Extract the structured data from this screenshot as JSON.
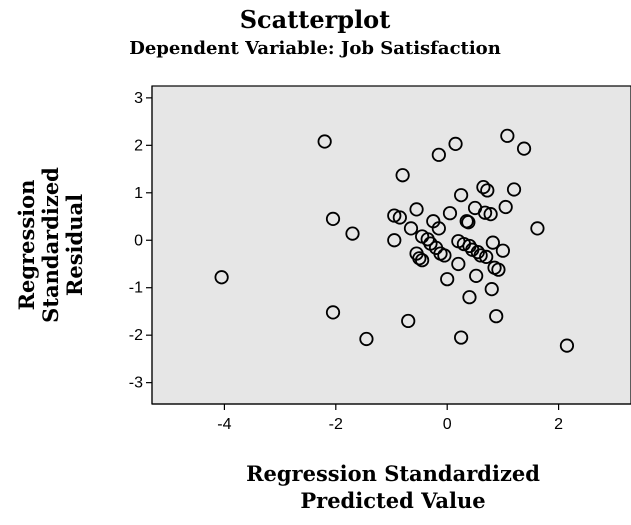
{
  "chart_data": {
    "type": "scatter",
    "title": "Scatterplot",
    "subtitle": "Dependent Variable: Job Satisfaction",
    "xlabel_lines": [
      "Regression Standardized",
      "Predicted Value"
    ],
    "ylabel_lines": [
      "Regression",
      "Standardized",
      "Residual"
    ],
    "xlim": [
      -5.3,
      3.3
    ],
    "ylim": [
      -3.45,
      3.25
    ],
    "xticks": [
      -4,
      -2,
      0,
      2
    ],
    "yticks": [
      3,
      2,
      1,
      0,
      -1,
      -2,
      -3
    ],
    "xtick_labels": [
      "-4",
      "-2",
      "0",
      "2"
    ],
    "ytick_labels": [
      "3",
      "2",
      "1",
      "0",
      "-1",
      "-2",
      "-3"
    ],
    "grid": false,
    "plot_background": "#e6e6e6",
    "marker_color": "#000000",
    "points": [
      {
        "x": -4.05,
        "y": -0.78
      },
      {
        "x": -2.2,
        "y": 2.08
      },
      {
        "x": -2.05,
        "y": 0.45
      },
      {
        "x": -2.05,
        "y": -1.52
      },
      {
        "x": -1.7,
        "y": 0.14
      },
      {
        "x": -1.45,
        "y": -2.08
      },
      {
        "x": -0.95,
        "y": 0.52
      },
      {
        "x": -0.85,
        "y": 0.48
      },
      {
        "x": -0.95,
        "y": 0.0
      },
      {
        "x": -0.8,
        "y": 1.37
      },
      {
        "x": -0.7,
        "y": -1.7
      },
      {
        "x": -0.65,
        "y": 0.25
      },
      {
        "x": -0.55,
        "y": 0.65
      },
      {
        "x": -0.55,
        "y": -0.28
      },
      {
        "x": -0.5,
        "y": -0.38
      },
      {
        "x": -0.45,
        "y": -0.42
      },
      {
        "x": -0.45,
        "y": 0.08
      },
      {
        "x": -0.35,
        "y": 0.02
      },
      {
        "x": -0.3,
        "y": -0.07
      },
      {
        "x": -0.25,
        "y": 0.4
      },
      {
        "x": -0.2,
        "y": -0.16
      },
      {
        "x": -0.15,
        "y": 0.25
      },
      {
        "x": -0.12,
        "y": -0.28
      },
      {
        "x": -0.15,
        "y": 1.8
      },
      {
        "x": -0.05,
        "y": -0.32
      },
      {
        "x": 0.0,
        "y": -0.82
      },
      {
        "x": 0.05,
        "y": 0.57
      },
      {
        "x": 0.15,
        "y": 2.03
      },
      {
        "x": 0.2,
        "y": -0.5
      },
      {
        "x": 0.2,
        "y": -0.02
      },
      {
        "x": 0.25,
        "y": 0.95
      },
      {
        "x": 0.25,
        "y": -2.05
      },
      {
        "x": 0.3,
        "y": -0.08
      },
      {
        "x": 0.35,
        "y": 0.4
      },
      {
        "x": 0.38,
        "y": 0.38
      },
      {
        "x": 0.4,
        "y": -0.12
      },
      {
        "x": 0.4,
        "y": -1.2
      },
      {
        "x": 0.45,
        "y": -0.2
      },
      {
        "x": 0.5,
        "y": 0.68
      },
      {
        "x": 0.52,
        "y": -0.75
      },
      {
        "x": 0.55,
        "y": -0.25
      },
      {
        "x": 0.6,
        "y": -0.32
      },
      {
        "x": 0.65,
        "y": 1.12
      },
      {
        "x": 0.68,
        "y": 0.58
      },
      {
        "x": 0.7,
        "y": -0.35
      },
      {
        "x": 0.72,
        "y": 1.05
      },
      {
        "x": 0.78,
        "y": 0.55
      },
      {
        "x": 0.8,
        "y": -1.03
      },
      {
        "x": 0.82,
        "y": -0.05
      },
      {
        "x": 0.85,
        "y": -0.58
      },
      {
        "x": 0.88,
        "y": -1.6
      },
      {
        "x": 0.92,
        "y": -0.62
      },
      {
        "x": 1.0,
        "y": -0.22
      },
      {
        "x": 1.05,
        "y": 0.7
      },
      {
        "x": 1.08,
        "y": 2.2
      },
      {
        "x": 1.2,
        "y": 1.07
      },
      {
        "x": 1.38,
        "y": 1.93
      },
      {
        "x": 1.62,
        "y": 0.25
      },
      {
        "x": 2.15,
        "y": -2.22
      }
    ]
  }
}
